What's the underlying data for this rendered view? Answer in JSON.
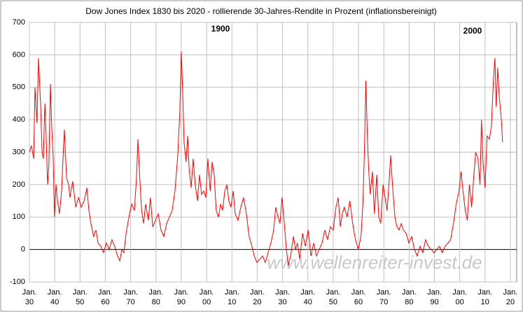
{
  "chart_data": {
    "type": "line",
    "title": "Dow Jones Index 1830 bis 2020 - rollierende 30-Jahres-Rendite in Prozent (inflationsbereinigt)",
    "annotations": [
      "1900",
      "2000",
      "www.wellenreiter-invest.de"
    ],
    "xlim": [
      1830,
      2022.5
    ],
    "xticks": [
      {
        "value": 1830,
        "label": "Jan.\n30"
      },
      {
        "value": 1840,
        "label": "Jan.\n40"
      },
      {
        "value": 1850,
        "label": "Jan.\n50"
      },
      {
        "value": 1860,
        "label": "Jan.\n60"
      },
      {
        "value": 1870,
        "label": "Jan.\n70"
      },
      {
        "value": 1880,
        "label": "Jan.\n80"
      },
      {
        "value": 1890,
        "label": "Jan.\n90"
      },
      {
        "value": 1900,
        "label": "Jan.\n00"
      },
      {
        "value": 1910,
        "label": "Jan.\n10"
      },
      {
        "value": 1920,
        "label": "Jan.\n20"
      },
      {
        "value": 1930,
        "label": "Jan.\n30"
      },
      {
        "value": 1940,
        "label": "Jan.\n40"
      },
      {
        "value": 1950,
        "label": "Jan.\n50"
      },
      {
        "value": 1960,
        "label": "Jan.\n60"
      },
      {
        "value": 1970,
        "label": "Jan.\n70"
      },
      {
        "value": 1980,
        "label": "Jan.\n80"
      },
      {
        "value": 1990,
        "label": "Jan.\n90"
      },
      {
        "value": 2000,
        "label": "Jan.\n00"
      },
      {
        "value": 2010,
        "label": "Jan.\n10"
      },
      {
        "value": 2020,
        "label": "Jan.\n20"
      }
    ],
    "ylim": [
      -100,
      700
    ],
    "yticks": [
      -100,
      0,
      100,
      200,
      300,
      400,
      500,
      600,
      700
    ],
    "grid": true,
    "series": [
      {
        "color": "#ff0000",
        "x": [
          1830.0,
          1830.8,
          1831.7,
          1832.2,
          1833.0,
          1833.6,
          1834.4,
          1835.0,
          1835.5,
          1836.1,
          1836.6,
          1837.2,
          1837.7,
          1838.3,
          1838.8,
          1839.4,
          1839.9,
          1840.5,
          1841.1,
          1841.9,
          1842.7,
          1843.8,
          1844.7,
          1845.5,
          1846.0,
          1847.1,
          1848.3,
          1849.4,
          1850.5,
          1851.6,
          1852.7,
          1853.5,
          1854.3,
          1855.4,
          1856.3,
          1857.1,
          1858.2,
          1859.3,
          1860.4,
          1861.5,
          1862.6,
          1863.7,
          1864.8,
          1865.7,
          1866.5,
          1867.3,
          1868.2,
          1869.3,
          1870.4,
          1871.5,
          1872.3,
          1872.9,
          1873.4,
          1874.3,
          1875.1,
          1875.9,
          1877.0,
          1877.8,
          1878.7,
          1879.8,
          1880.9,
          1882.0,
          1883.1,
          1884.2,
          1885.3,
          1886.4,
          1887.5,
          1888.6,
          1889.4,
          1890.0,
          1890.5,
          1891.1,
          1891.9,
          1892.5,
          1893.1,
          1893.9,
          1894.7,
          1895.5,
          1896.4,
          1897.2,
          1898.0,
          1898.9,
          1899.7,
          1900.5,
          1901.4,
          1902.2,
          1903.0,
          1903.8,
          1904.7,
          1905.5,
          1906.3,
          1907.2,
          1908.0,
          1908.8,
          1909.6,
          1910.5,
          1911.3,
          1912.4,
          1913.5,
          1914.6,
          1915.7,
          1916.8,
          1917.9,
          1918.8,
          1919.9,
          1921.0,
          1922.1,
          1923.2,
          1924.3,
          1925.4,
          1926.5,
          1927.3,
          1928.2,
          1929.0,
          1929.8,
          1930.7,
          1931.5,
          1932.3,
          1933.2,
          1934.3,
          1935.1,
          1935.9,
          1936.8,
          1937.9,
          1939.0,
          1940.1,
          1941.2,
          1942.3,
          1943.4,
          1944.5,
          1945.6,
          1946.7,
          1947.8,
          1948.9,
          1950.0,
          1951.1,
          1952.0,
          1952.8,
          1953.6,
          1954.4,
          1955.5,
          1956.6,
          1957.7,
          1958.8,
          1959.9,
          1961.0,
          1961.8,
          1962.4,
          1962.9,
          1963.5,
          1964.0,
          1964.6,
          1965.5,
          1966.3,
          1967.2,
          1968.0,
          1968.8,
          1969.7,
          1970.5,
          1971.3,
          1972.2,
          1972.7,
          1973.6,
          1974.4,
          1975.2,
          1976.0,
          1976.9,
          1977.7,
          1978.8,
          1979.9,
          1981.0,
          1982.1,
          1983.2,
          1984.3,
          1985.4,
          1986.5,
          1987.6,
          1988.7,
          1989.8,
          1990.9,
          1992.0,
          1993.1,
          1994.2,
          1995.3,
          1996.4,
          1997.5,
          1998.6,
          1999.7,
          2000.5,
          2001.3,
          2002.2,
          2003.0,
          2003.8,
          2004.7,
          2005.5,
          2006.3,
          2007.2,
          2008.0,
          2008.6,
          2009.2,
          2010.0,
          2010.8,
          2011.7,
          2012.5,
          2013.3,
          2013.9,
          2014.4,
          2015.0,
          2015.5,
          2016.1,
          2016.6,
          2016.9
        ],
        "values": [
          300,
          320,
          280,
          500,
          390,
          590,
          450,
          300,
          280,
          450,
          350,
          200,
          260,
          510,
          380,
          280,
          100,
          200,
          150,
          110,
          180,
          370,
          220,
          200,
          160,
          210,
          130,
          160,
          130,
          150,
          190,
          120,
          80,
          40,
          60,
          20,
          10,
          -10,
          20,
          0,
          30,
          10,
          -20,
          -35,
          0,
          -10,
          50,
          100,
          140,
          120,
          220,
          340,
          250,
          120,
          80,
          140,
          90,
          160,
          70,
          90,
          110,
          60,
          40,
          80,
          100,
          120,
          180,
          290,
          420,
          610,
          500,
          330,
          270,
          350,
          250,
          190,
          280,
          200,
          150,
          230,
          170,
          180,
          160,
          280,
          180,
          270,
          230,
          120,
          100,
          140,
          120,
          180,
          200,
          150,
          130,
          180,
          110,
          90,
          130,
          160,
          110,
          40,
          10,
          -20,
          -40,
          -30,
          -20,
          -40,
          -10,
          20,
          60,
          130,
          100,
          80,
          160,
          80,
          0,
          -50,
          -20,
          40,
          0,
          20,
          -30,
          50,
          10,
          60,
          -20,
          20,
          -20,
          0,
          20,
          60,
          30,
          70,
          60,
          130,
          160,
          70,
          110,
          130,
          100,
          150,
          80,
          30,
          0,
          40,
          150,
          320,
          520,
          350,
          250,
          170,
          240,
          110,
          230,
          100,
          80,
          200,
          160,
          120,
          220,
          290,
          180,
          100,
          70,
          60,
          80,
          60,
          50,
          20,
          40,
          0,
          -20,
          10,
          -10,
          30,
          10,
          0,
          -10,
          0,
          10,
          -10,
          10,
          20,
          30,
          80,
          140,
          180,
          240,
          180,
          120,
          90,
          200,
          130,
          220,
          300,
          280,
          200,
          400,
          270,
          190,
          350,
          340,
          380,
          520,
          590,
          440,
          560,
          480,
          430,
          380,
          330
        ]
      }
    ]
  }
}
